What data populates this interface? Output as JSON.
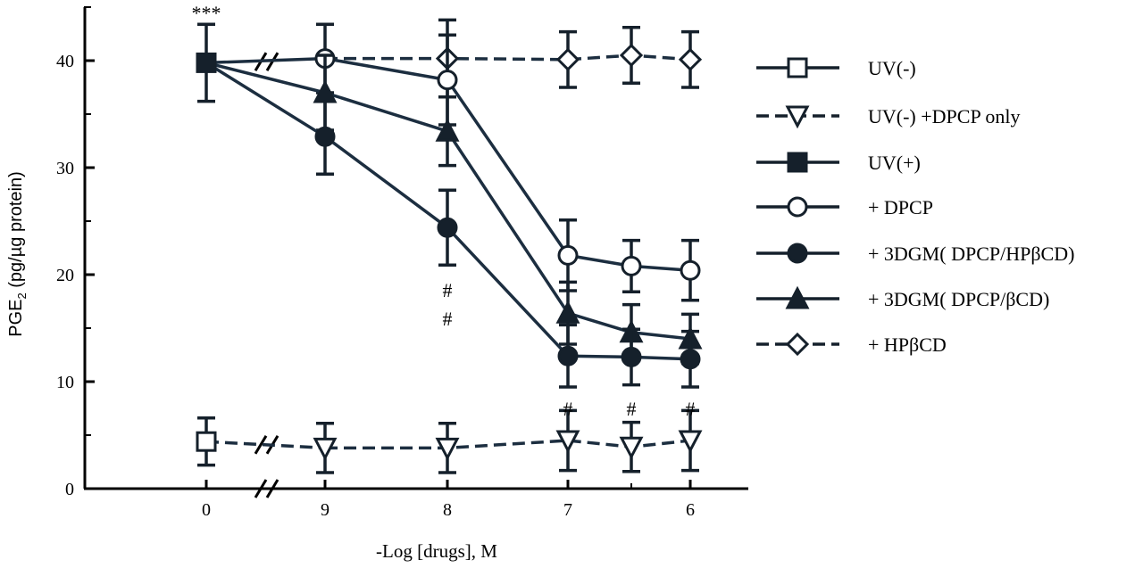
{
  "chart_data": {
    "type": "line",
    "title": "",
    "xlabel": "-Log [drugs], M",
    "ylabel": "PGE2 (pg/µg protein)",
    "ylabel_parts": {
      "prefix": "PGE",
      "subscript": "2",
      "suffix": " (pg/µg protein)"
    },
    "ylim": [
      0,
      45
    ],
    "yticks": [
      0,
      10,
      20,
      30,
      40
    ],
    "x_ticks": [
      {
        "x": 0,
        "label": "0"
      },
      {
        "x": 9,
        "label": "9"
      },
      {
        "x": 8,
        "label": "8"
      },
      {
        "x": 7,
        "label": "7"
      },
      {
        "x": 6,
        "label": "6"
      }
    ],
    "x_axis_note": "broken axis between 0 and 9; values decrease left to right (9 to 6)",
    "grid": false,
    "legend_position": "right",
    "series": [
      {
        "name": "UV(-)",
        "marker": "square-open",
        "line": "solid",
        "points": [
          {
            "x": 0,
            "y": 4.4,
            "err": 2.2
          }
        ]
      },
      {
        "name": "UV(-) +DPCP only",
        "marker": "triangle-down-open",
        "line": "dashed",
        "points": [
          {
            "x": 9,
            "y": 3.8,
            "err": 2.3
          },
          {
            "x": 8,
            "y": 3.8,
            "err": 2.3
          },
          {
            "x": 7,
            "y": 4.5,
            "err": 2.8
          },
          {
            "x": 6.5,
            "y": 3.9,
            "err": 2.3
          },
          {
            "x": 6,
            "y": 4.5,
            "err": 2.8
          }
        ]
      },
      {
        "name": "UV(+)",
        "marker": "square-filled",
        "line": "solid",
        "points": [
          {
            "x": 0,
            "y": 39.8,
            "err": 3.6
          }
        ]
      },
      {
        "name": "+ DPCP",
        "marker": "circle-open",
        "line": "solid",
        "points": [
          {
            "x": 0,
            "y": 39.8,
            "err": 0
          },
          {
            "x": 9,
            "y": 40.2,
            "err": 3.2
          },
          {
            "x": 8,
            "y": 38.2,
            "err": 4.2
          },
          {
            "x": 7,
            "y": 21.8,
            "err": 3.3
          },
          {
            "x": 6.5,
            "y": 20.8,
            "err": 2.4
          },
          {
            "x": 6,
            "y": 20.4,
            "err": 2.8
          }
        ]
      },
      {
        "name": "+ 3DGM( DPCP/HPβCD)",
        "marker": "circle-filled",
        "line": "solid",
        "points": [
          {
            "x": 0,
            "y": 39.8,
            "err": 0
          },
          {
            "x": 9,
            "y": 32.9,
            "err": 3.5
          },
          {
            "x": 8,
            "y": 24.4,
            "err": 3.5
          },
          {
            "x": 7,
            "y": 12.4,
            "err": 2.9
          },
          {
            "x": 6.5,
            "y": 12.3,
            "err": 2.6
          },
          {
            "x": 6,
            "y": 12.1,
            "err": 2.6
          }
        ]
      },
      {
        "name": "+ 3DGM( DPCP/βCD)",
        "marker": "triangle-up-filled",
        "line": "solid",
        "points": [
          {
            "x": 0,
            "y": 39.8,
            "err": 0
          },
          {
            "x": 9,
            "y": 37.0,
            "err": 3.5
          },
          {
            "x": 8,
            "y": 33.4,
            "err": 3.2
          },
          {
            "x": 7,
            "y": 16.4,
            "err": 2.9
          },
          {
            "x": 6.5,
            "y": 14.6,
            "err": 2.6
          },
          {
            "x": 6,
            "y": 14.0,
            "err": 2.3
          }
        ]
      },
      {
        "name": "+ HPβCD",
        "marker": "diamond-open",
        "line": "dashed",
        "points": [
          {
            "x": 9,
            "y": 40.2,
            "err": 0
          },
          {
            "x": 8,
            "y": 40.2,
            "err": 3.6
          },
          {
            "x": 7,
            "y": 40.1,
            "err": 2.6
          },
          {
            "x": 6.5,
            "y": 40.5,
            "err": 2.6
          },
          {
            "x": 6,
            "y": 40.1,
            "err": 2.6
          }
        ]
      }
    ],
    "annotations": [
      {
        "text": "***",
        "x": 0,
        "y": 44.5
      },
      {
        "text": "#",
        "x": 8,
        "y": 18.6
      },
      {
        "text": "#",
        "x": 8,
        "y": 15.9
      },
      {
        "text": "#",
        "x": 7,
        "y": 7.5
      },
      {
        "text": "#",
        "x": 6.5,
        "y": 7.5
      },
      {
        "text": "#",
        "x": 6,
        "y": 7.5
      }
    ]
  }
}
